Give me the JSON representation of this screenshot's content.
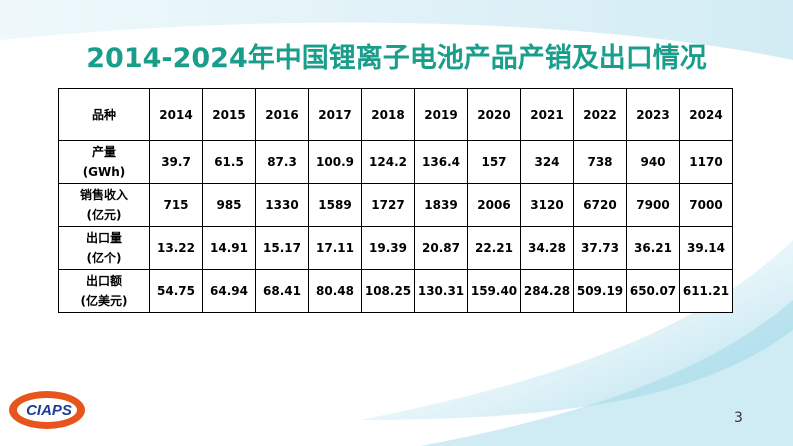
{
  "header": {
    "title": "2014-2024年中国锂离子电池产品产销及出口情况"
  },
  "table": {
    "header": [
      "品种",
      "2014",
      "2015",
      "2016",
      "2017",
      "2018",
      "2019",
      "2020",
      "2021",
      "2022",
      "2023",
      "2024"
    ],
    "rows": [
      {
        "label": [
          "产量",
          "(GWh)"
        ],
        "values": [
          "39.7",
          "61.5",
          "87.3",
          "100.9",
          "124.2",
          "136.4",
          "157",
          "324",
          "738",
          "940",
          "1170"
        ]
      },
      {
        "label": [
          "销售收入",
          "(亿元)"
        ],
        "values": [
          "715",
          "985",
          "1330",
          "1589",
          "1727",
          "1839",
          "2006",
          "3120",
          "6720",
          "7900",
          "7000"
        ]
      },
      {
        "label": [
          "出口量",
          "(亿个)"
        ],
        "values": [
          "13.22",
          "14.91",
          "15.17",
          "17.11",
          "19.39",
          "20.87",
          "22.21",
          "34.28",
          "37.73",
          "36.21",
          "39.14"
        ]
      },
      {
        "label": [
          "出口额",
          "(亿美元)"
        ],
        "values": [
          "54.75",
          "64.94",
          "68.41",
          "80.48",
          "108.25",
          "130.31",
          "159.40",
          "284.28",
          "509.19",
          "650.07",
          "611.21"
        ]
      }
    ]
  },
  "logo": {
    "text": "CIAPS"
  },
  "footer": {
    "page_number": "3"
  }
}
